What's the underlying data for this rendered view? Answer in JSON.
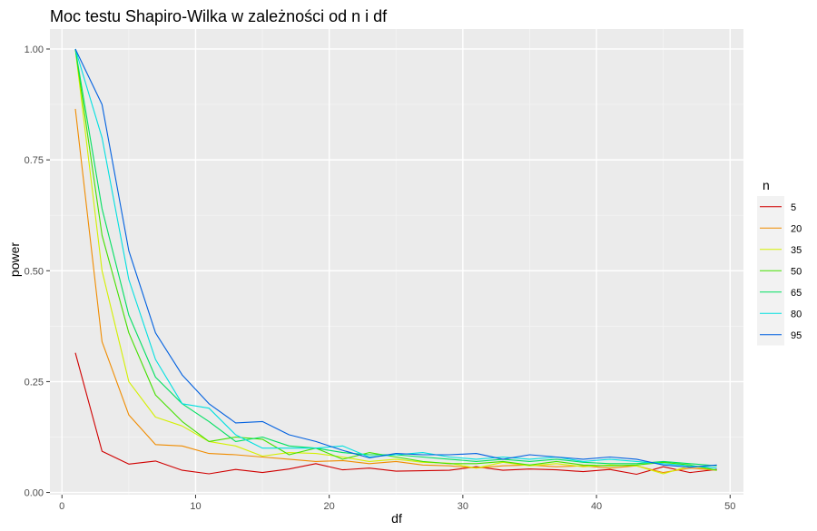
{
  "chart_data": {
    "type": "line",
    "title": "Moc testu Shapiro-Wilka w zależności od n i df",
    "xlabel": "df",
    "ylabel": "power",
    "xlim": [
      -0.9,
      51.0
    ],
    "ylim": [
      -0.005,
      1.045
    ],
    "xticks": [
      0,
      10,
      20,
      30,
      40,
      50
    ],
    "yticks": [
      0.0,
      0.25,
      0.5,
      0.75,
      1.0
    ],
    "ytick_labels": [
      "0.00",
      "0.25",
      "0.50",
      "0.75",
      "1.00"
    ],
    "grid": true,
    "legend": {
      "title": "n",
      "position": "right"
    },
    "x": [
      1,
      3,
      5,
      7,
      9,
      11,
      13,
      15,
      17,
      19,
      21,
      23,
      25,
      27,
      29,
      31,
      33,
      35,
      37,
      39,
      41,
      43,
      45,
      47,
      49
    ],
    "series": [
      {
        "name": "5",
        "color": "#d00000",
        "values": [
          0.315,
          0.093,
          0.064,
          0.071,
          0.05,
          0.042,
          0.052,
          0.045,
          0.053,
          0.065,
          0.051,
          0.055,
          0.048,
          0.049,
          0.05,
          0.058,
          0.05,
          0.053,
          0.051,
          0.047,
          0.052,
          0.041,
          0.058,
          0.045,
          0.052
        ]
      },
      {
        "name": "20",
        "color": "#f08c00",
        "values": [
          0.865,
          0.34,
          0.175,
          0.108,
          0.105,
          0.088,
          0.085,
          0.08,
          0.075,
          0.07,
          0.072,
          0.065,
          0.07,
          0.062,
          0.06,
          0.055,
          0.06,
          0.062,
          0.058,
          0.06,
          0.055,
          0.06,
          0.045,
          0.055,
          0.05
        ]
      },
      {
        "name": "35",
        "color": "#d4f000",
        "values": [
          1.0,
          0.5,
          0.25,
          0.17,
          0.15,
          0.115,
          0.105,
          0.082,
          0.09,
          0.088,
          0.08,
          0.07,
          0.075,
          0.068,
          0.066,
          0.055,
          0.068,
          0.06,
          0.065,
          0.058,
          0.062,
          0.06,
          0.042,
          0.06,
          0.05
        ]
      },
      {
        "name": "50",
        "color": "#44e000",
        "values": [
          1.0,
          0.58,
          0.36,
          0.22,
          0.16,
          0.115,
          0.125,
          0.12,
          0.085,
          0.1,
          0.075,
          0.09,
          0.08,
          0.07,
          0.065,
          0.065,
          0.07,
          0.062,
          0.07,
          0.062,
          0.06,
          0.062,
          0.068,
          0.062,
          0.05
        ]
      },
      {
        "name": "65",
        "color": "#00e060",
        "values": [
          1.0,
          0.64,
          0.4,
          0.26,
          0.2,
          0.16,
          0.115,
          0.125,
          0.105,
          0.1,
          0.09,
          0.085,
          0.085,
          0.08,
          0.075,
          0.07,
          0.075,
          0.07,
          0.075,
          0.068,
          0.065,
          0.065,
          0.07,
          0.065,
          0.06
        ]
      },
      {
        "name": "80",
        "color": "#00e0e0",
        "values": [
          1.0,
          0.8,
          0.48,
          0.3,
          0.2,
          0.19,
          0.13,
          0.1,
          0.1,
          0.1,
          0.105,
          0.08,
          0.085,
          0.09,
          0.08,
          0.075,
          0.08,
          0.075,
          0.08,
          0.07,
          0.075,
          0.07,
          0.065,
          0.06,
          0.055
        ]
      },
      {
        "name": "95",
        "color": "#0060e0",
        "values": [
          1.0,
          0.875,
          0.545,
          0.36,
          0.265,
          0.2,
          0.157,
          0.16,
          0.13,
          0.115,
          0.095,
          0.078,
          0.088,
          0.085,
          0.085,
          0.088,
          0.075,
          0.085,
          0.08,
          0.075,
          0.08,
          0.075,
          0.062,
          0.057,
          0.062
        ]
      }
    ]
  }
}
